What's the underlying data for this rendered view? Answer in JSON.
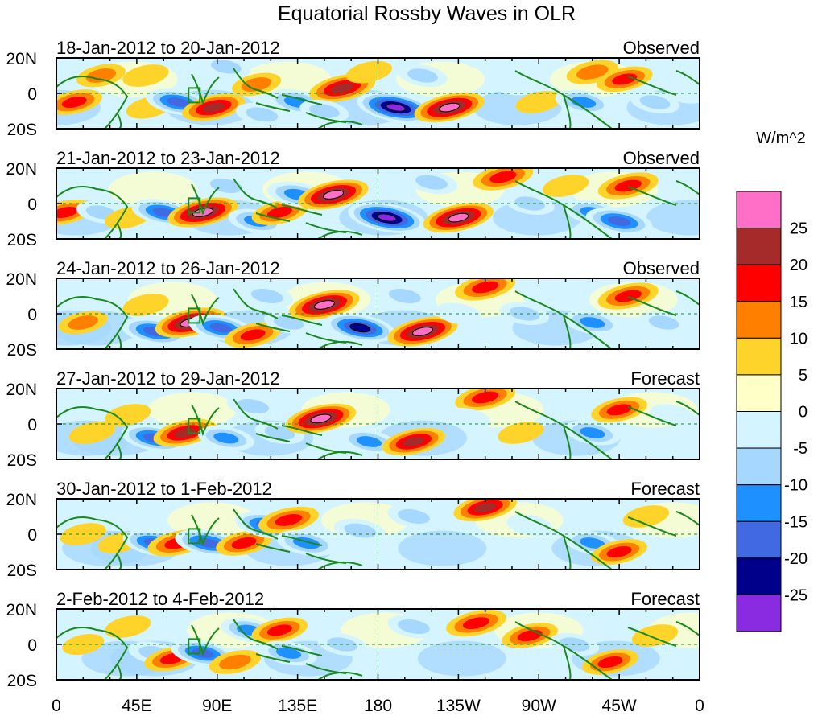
{
  "chart_data": {
    "type": "heatmap",
    "title": "Equatorial Rossby Waves in OLR",
    "units": "W/m^2",
    "lat_ticks": [
      "20N",
      "0",
      "20S"
    ],
    "lon_ticks": [
      "0",
      "45E",
      "90E",
      "135E",
      "180",
      "135W",
      "90W",
      "45W",
      "0"
    ],
    "lat_range": [
      -20,
      20
    ],
    "lon_range": [
      0,
      360
    ],
    "colorbar": {
      "labels": [
        "25",
        "20",
        "15",
        "10",
        "5",
        "0",
        "-5",
        "-10",
        "-15",
        "-20",
        "-25"
      ],
      "colors": [
        "#ff6ec7",
        "#a52a2a",
        "#ff0000",
        "#ff7f00",
        "#ffd42a",
        "#ffffc8",
        "#d4f4ff",
        "#a6d7ff",
        "#1f90ff",
        "#4169e1",
        "#00008b",
        "#8a2be2"
      ],
      "levels": [
        25,
        20,
        15,
        10,
        5,
        0,
        -5,
        -10,
        -15,
        -20,
        -25
      ]
    },
    "panels": [
      {
        "period": "18-Jan-2012 to 20-Jan-2012",
        "status": "Observed",
        "anomalies": [
          {
            "lon": 10,
            "lat": -5,
            "value": 15
          },
          {
            "lon": 25,
            "lat": 10,
            "value": 10
          },
          {
            "lon": 50,
            "lat": 10,
            "value": 8
          },
          {
            "lon": 52,
            "lat": -8,
            "value": 8
          },
          {
            "lon": 68,
            "lat": -5,
            "value": -20
          },
          {
            "lon": 88,
            "lat": -8,
            "value": 20
          },
          {
            "lon": 95,
            "lat": 15,
            "value": -10
          },
          {
            "lon": 112,
            "lat": 5,
            "value": 10
          },
          {
            "lon": 115,
            "lat": -12,
            "value": -12
          },
          {
            "lon": 135,
            "lat": -5,
            "value": -18
          },
          {
            "lon": 160,
            "lat": 3,
            "value": 22
          },
          {
            "lon": 150,
            "lat": -10,
            "value": -10
          },
          {
            "lon": 190,
            "lat": -8,
            "value": -30
          },
          {
            "lon": 175,
            "lat": 12,
            "value": 8
          },
          {
            "lon": 205,
            "lat": 10,
            "value": -10
          },
          {
            "lon": 220,
            "lat": -8,
            "value": 25
          },
          {
            "lon": 255,
            "lat": 5,
            "value": -8
          },
          {
            "lon": 270,
            "lat": -5,
            "value": 8
          },
          {
            "lon": 295,
            "lat": -5,
            "value": -15
          },
          {
            "lon": 300,
            "lat": 12,
            "value": 12
          },
          {
            "lon": 318,
            "lat": 8,
            "value": 15
          },
          {
            "lon": 335,
            "lat": -5,
            "value": -10
          },
          {
            "lon": 352,
            "lat": 0,
            "value": -5
          }
        ]
      },
      {
        "period": "21-Jan-2012 to 23-Jan-2012",
        "status": "Observed",
        "anomalies": [
          {
            "lon": 5,
            "lat": -5,
            "value": 15
          },
          {
            "lon": 25,
            "lat": -5,
            "value": -10
          },
          {
            "lon": 40,
            "lat": -8,
            "value": 8
          },
          {
            "lon": 60,
            "lat": -5,
            "value": -20
          },
          {
            "lon": 82,
            "lat": -5,
            "value": 25
          },
          {
            "lon": 95,
            "lat": 10,
            "value": -12
          },
          {
            "lon": 112,
            "lat": -10,
            "value": -15
          },
          {
            "lon": 125,
            "lat": -5,
            "value": 15
          },
          {
            "lon": 135,
            "lat": 5,
            "value": -18
          },
          {
            "lon": 155,
            "lat": 5,
            "value": 25
          },
          {
            "lon": 185,
            "lat": -8,
            "value": -30
          },
          {
            "lon": 210,
            "lat": 12,
            "value": -12
          },
          {
            "lon": 225,
            "lat": -8,
            "value": 25
          },
          {
            "lon": 250,
            "lat": 15,
            "value": 18
          },
          {
            "lon": 265,
            "lat": 0,
            "value": -10
          },
          {
            "lon": 285,
            "lat": 10,
            "value": 8
          },
          {
            "lon": 300,
            "lat": -5,
            "value": -15
          },
          {
            "lon": 320,
            "lat": 10,
            "value": 18
          },
          {
            "lon": 315,
            "lat": -10,
            "value": -22
          },
          {
            "lon": 350,
            "lat": 10,
            "value": -8
          }
        ]
      },
      {
        "period": "24-Jan-2012 to 26-Jan-2012",
        "status": "Observed",
        "anomalies": [
          {
            "lon": 15,
            "lat": -5,
            "value": 10
          },
          {
            "lon": 50,
            "lat": 5,
            "value": 8
          },
          {
            "lon": 55,
            "lat": -10,
            "value": -22
          },
          {
            "lon": 75,
            "lat": -5,
            "value": 25
          },
          {
            "lon": 92,
            "lat": -8,
            "value": -20
          },
          {
            "lon": 110,
            "lat": -12,
            "value": 15
          },
          {
            "lon": 118,
            "lat": 10,
            "value": -12
          },
          {
            "lon": 130,
            "lat": -5,
            "value": -10
          },
          {
            "lon": 150,
            "lat": 5,
            "value": 25
          },
          {
            "lon": 170,
            "lat": -8,
            "value": -25
          },
          {
            "lon": 195,
            "lat": 10,
            "value": -12
          },
          {
            "lon": 205,
            "lat": -10,
            "value": 25
          },
          {
            "lon": 240,
            "lat": 15,
            "value": 18
          },
          {
            "lon": 225,
            "lat": 0,
            "value": -8
          },
          {
            "lon": 262,
            "lat": 0,
            "value": -10
          },
          {
            "lon": 300,
            "lat": -5,
            "value": -15
          },
          {
            "lon": 320,
            "lat": 10,
            "value": 18
          },
          {
            "lon": 340,
            "lat": -5,
            "value": -10
          }
        ]
      },
      {
        "period": "27-Jan-2012 to 29-Jan-2012",
        "status": "Forecast",
        "anomalies": [
          {
            "lon": 20,
            "lat": -5,
            "value": 8
          },
          {
            "lon": 40,
            "lat": 5,
            "value": 8
          },
          {
            "lon": 55,
            "lat": -8,
            "value": -22
          },
          {
            "lon": 72,
            "lat": -5,
            "value": 20
          },
          {
            "lon": 95,
            "lat": -8,
            "value": -15
          },
          {
            "lon": 110,
            "lat": 10,
            "value": -12
          },
          {
            "lon": 125,
            "lat": -5,
            "value": -10
          },
          {
            "lon": 148,
            "lat": 3,
            "value": 25
          },
          {
            "lon": 175,
            "lat": -10,
            "value": -15
          },
          {
            "lon": 200,
            "lat": -10,
            "value": 20
          },
          {
            "lon": 240,
            "lat": 15,
            "value": 18
          },
          {
            "lon": 230,
            "lat": 3,
            "value": -8
          },
          {
            "lon": 260,
            "lat": -5,
            "value": 8
          },
          {
            "lon": 300,
            "lat": -5,
            "value": -15
          },
          {
            "lon": 315,
            "lat": 8,
            "value": 15
          },
          {
            "lon": 345,
            "lat": 5,
            "value": -8
          }
        ]
      },
      {
        "period": "30-Jan-2012 to 1-Feb-2012",
        "status": "Forecast",
        "anomalies": [
          {
            "lon": 15,
            "lat": 0,
            "value": 8
          },
          {
            "lon": 35,
            "lat": -5,
            "value": 5
          },
          {
            "lon": 55,
            "lat": -5,
            "value": -20
          },
          {
            "lon": 68,
            "lat": -5,
            "value": 18
          },
          {
            "lon": 85,
            "lat": -5,
            "value": -22
          },
          {
            "lon": 105,
            "lat": -5,
            "value": 15
          },
          {
            "lon": 118,
            "lat": 5,
            "value": -20
          },
          {
            "lon": 130,
            "lat": 8,
            "value": 18
          },
          {
            "lon": 140,
            "lat": -5,
            "value": -18
          },
          {
            "lon": 170,
            "lat": 2,
            "value": -12
          },
          {
            "lon": 200,
            "lat": 10,
            "value": -12
          },
          {
            "lon": 240,
            "lat": 15,
            "value": 20
          },
          {
            "lon": 265,
            "lat": 5,
            "value": -8
          },
          {
            "lon": 300,
            "lat": -5,
            "value": -15
          },
          {
            "lon": 315,
            "lat": -10,
            "value": 15
          },
          {
            "lon": 330,
            "lat": 10,
            "value": 8
          }
        ]
      },
      {
        "period": "2-Feb-2012 to 4-Feb-2012",
        "status": "Forecast",
        "anomalies": [
          {
            "lon": 15,
            "lat": 0,
            "value": 5
          },
          {
            "lon": 40,
            "lat": 10,
            "value": 8
          },
          {
            "lon": 55,
            "lat": -5,
            "value": -12
          },
          {
            "lon": 65,
            "lat": -8,
            "value": 15
          },
          {
            "lon": 82,
            "lat": -5,
            "value": -20
          },
          {
            "lon": 100,
            "lat": -10,
            "value": 12
          },
          {
            "lon": 108,
            "lat": 8,
            "value": -15
          },
          {
            "lon": 125,
            "lat": 8,
            "value": 15
          },
          {
            "lon": 130,
            "lat": -5,
            "value": -15
          },
          {
            "lon": 160,
            "lat": 0,
            "value": -10
          },
          {
            "lon": 200,
            "lat": 10,
            "value": -12
          },
          {
            "lon": 235,
            "lat": 12,
            "value": 18
          },
          {
            "lon": 265,
            "lat": 5,
            "value": 15
          },
          {
            "lon": 290,
            "lat": 0,
            "value": -10
          },
          {
            "lon": 310,
            "lat": -10,
            "value": 15
          },
          {
            "lon": 335,
            "lat": 5,
            "value": 8
          }
        ]
      }
    ]
  }
}
